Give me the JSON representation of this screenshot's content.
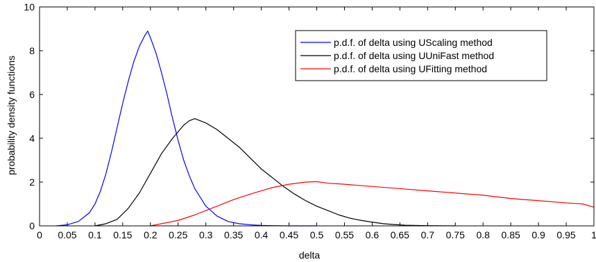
{
  "chart_data": {
    "type": "line",
    "xlabel": "delta",
    "ylabel": "probability density functions",
    "xlim": [
      0,
      1
    ],
    "ylim": [
      0,
      10
    ],
    "xticks": [
      0,
      0.05,
      0.1,
      0.15,
      0.2,
      0.25,
      0.3,
      0.35,
      0.4,
      0.45,
      0.5,
      0.55,
      0.6,
      0.65,
      0.7,
      0.75,
      0.8,
      0.85,
      0.9,
      0.95,
      1
    ],
    "xtick_labels": [
      "0",
      "0.05",
      "0.1",
      "0.15",
      "0.2",
      "0.25",
      "0.3",
      "0.35",
      "0.4",
      "0.45",
      "0.5",
      "0.55",
      "0.6",
      "0.65",
      "0.7",
      "0.75",
      "0.8",
      "0.85",
      "0.9",
      "0.95",
      "1"
    ],
    "yticks": [
      0,
      2,
      4,
      6,
      8,
      10
    ],
    "ytick_labels": [
      "0",
      "2",
      "4",
      "6",
      "8",
      "10"
    ],
    "grid": false,
    "legend_position": "top-right",
    "series": [
      {
        "name": "p.d.f. of delta using UScaling method",
        "color": "#0000ff",
        "x": [
          0.03,
          0.05,
          0.07,
          0.09,
          0.1,
          0.11,
          0.12,
          0.13,
          0.14,
          0.15,
          0.16,
          0.17,
          0.18,
          0.19,
          0.195,
          0.2,
          0.21,
          0.22,
          0.23,
          0.24,
          0.25,
          0.26,
          0.27,
          0.28,
          0.3,
          0.32,
          0.34,
          0.36,
          0.38,
          0.4,
          0.42,
          0.45,
          0.5
        ],
        "y": [
          0.0,
          0.05,
          0.2,
          0.6,
          1.0,
          1.6,
          2.4,
          3.4,
          4.5,
          5.6,
          6.6,
          7.5,
          8.2,
          8.7,
          8.9,
          8.6,
          7.9,
          7.0,
          6.0,
          4.9,
          3.9,
          3.0,
          2.3,
          1.7,
          0.9,
          0.45,
          0.2,
          0.1,
          0.05,
          0.02,
          0.01,
          0.0,
          0.0
        ]
      },
      {
        "name": "p.d.f. of delta using UUniFast method",
        "color": "#000000",
        "x": [
          0.1,
          0.12,
          0.14,
          0.16,
          0.18,
          0.2,
          0.22,
          0.24,
          0.26,
          0.27,
          0.28,
          0.29,
          0.3,
          0.32,
          0.34,
          0.36,
          0.38,
          0.4,
          0.42,
          0.44,
          0.46,
          0.48,
          0.5,
          0.52,
          0.54,
          0.56,
          0.58,
          0.6,
          0.62,
          0.64,
          0.66,
          0.7,
          0.75
        ],
        "y": [
          0.0,
          0.1,
          0.3,
          0.8,
          1.5,
          2.4,
          3.3,
          4.0,
          4.6,
          4.8,
          4.9,
          4.8,
          4.7,
          4.4,
          4.0,
          3.6,
          3.1,
          2.6,
          2.2,
          1.8,
          1.45,
          1.15,
          0.9,
          0.7,
          0.5,
          0.35,
          0.25,
          0.17,
          0.1,
          0.06,
          0.03,
          0.01,
          0.0
        ]
      },
      {
        "name": "p.d.f. of delta using UFitting method",
        "color": "#ff0000",
        "x": [
          0.2,
          0.22,
          0.25,
          0.28,
          0.3,
          0.32,
          0.35,
          0.38,
          0.4,
          0.42,
          0.45,
          0.48,
          0.5,
          0.52,
          0.55,
          0.6,
          0.65,
          0.7,
          0.75,
          0.8,
          0.85,
          0.9,
          0.95,
          0.98,
          1.0
        ],
        "y": [
          0.0,
          0.1,
          0.25,
          0.5,
          0.7,
          0.9,
          1.2,
          1.45,
          1.6,
          1.75,
          1.9,
          2.0,
          2.02,
          1.95,
          1.9,
          1.8,
          1.7,
          1.6,
          1.5,
          1.4,
          1.25,
          1.15,
          1.05,
          1.0,
          0.85
        ]
      }
    ]
  }
}
